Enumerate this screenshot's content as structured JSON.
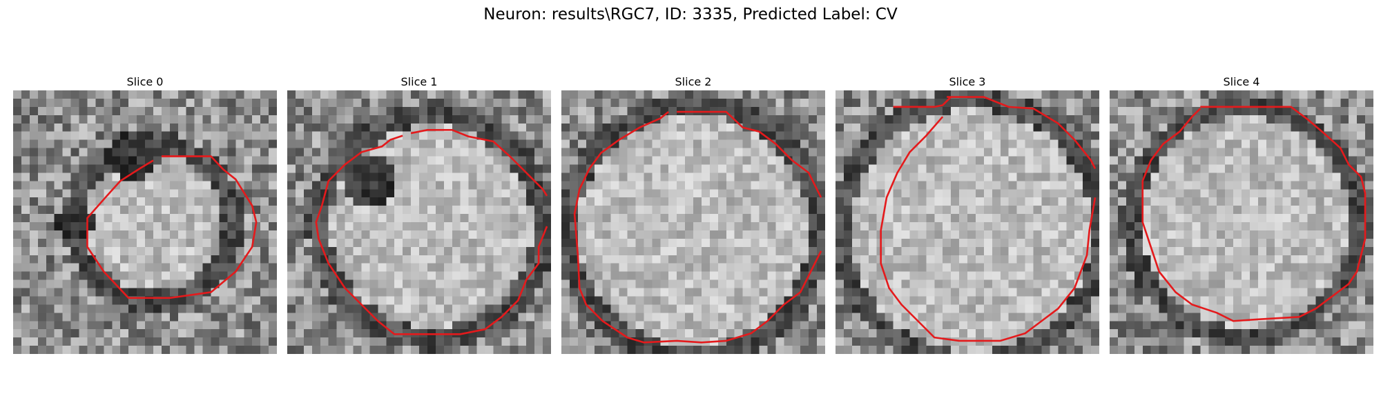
{
  "figure": {
    "title": "Neuron: results\\RGC7, ID: 3335, Predicted Label: CV"
  },
  "slices": [
    {
      "title": "Slice 0"
    },
    {
      "title": "Slice 1"
    },
    {
      "title": "Slice 2"
    },
    {
      "title": "Slice 3"
    },
    {
      "title": "Slice 4"
    }
  ],
  "style": {
    "contour_color": "#e41a1c",
    "colormap": "grayscale"
  }
}
